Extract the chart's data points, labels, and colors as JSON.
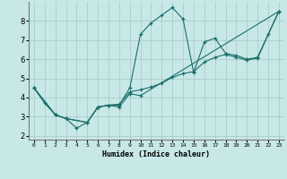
{
  "xlabel": "Humidex (Indice chaleur)",
  "bg_color": "#c8e8e8",
  "line_color": "#1a6e6a",
  "grid_color": "#a8c8c8",
  "xlim": [
    -0.5,
    23.5
  ],
  "ylim": [
    1.8,
    9.0
  ],
  "xticks": [
    0,
    1,
    2,
    3,
    4,
    5,
    6,
    7,
    8,
    9,
    10,
    11,
    12,
    13,
    14,
    15,
    16,
    17,
    18,
    19,
    20,
    21,
    22,
    23
  ],
  "yticks": [
    2,
    3,
    4,
    5,
    6,
    7,
    8
  ],
  "line1_x": [
    0,
    1,
    2,
    3,
    4,
    5,
    6,
    7,
    8,
    9,
    10,
    11,
    12,
    13,
    14,
    15,
    16,
    17,
    18,
    19,
    20,
    21,
    22,
    23
  ],
  "line1_y": [
    4.5,
    3.7,
    3.1,
    2.9,
    2.4,
    2.7,
    3.5,
    3.6,
    3.6,
    4.5,
    7.3,
    7.9,
    8.3,
    8.7,
    8.1,
    5.3,
    6.9,
    7.1,
    6.3,
    6.2,
    6.0,
    6.1,
    7.3,
    8.5
  ],
  "line2_x": [
    0,
    2,
    3,
    5,
    6,
    7,
    8,
    9,
    10,
    11,
    12,
    13,
    14,
    15,
    16,
    17,
    18,
    19,
    20,
    21,
    23
  ],
  "line2_y": [
    4.5,
    3.1,
    2.9,
    2.7,
    3.5,
    3.6,
    3.65,
    4.3,
    4.4,
    4.55,
    4.75,
    5.05,
    5.25,
    5.35,
    5.85,
    6.1,
    6.25,
    6.1,
    5.95,
    6.05,
    8.5
  ],
  "line3_x": [
    0,
    2,
    3,
    5,
    6,
    7,
    8,
    9,
    10,
    23
  ],
  "line3_y": [
    4.5,
    3.1,
    2.9,
    2.7,
    3.5,
    3.6,
    3.5,
    4.2,
    4.1,
    8.5
  ]
}
